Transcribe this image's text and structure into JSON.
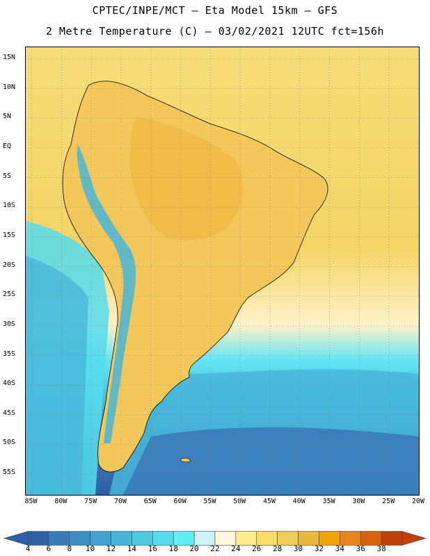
{
  "header": {
    "line1": "CPTEC/INPE/MCT –  Eta Model 15km – GFS",
    "line2": "2 Metre Temperature (C) – 03/02/2021 12UTC fct=156h"
  },
  "map": {
    "lat_labels": [
      "15N",
      "10N",
      "5N",
      "EQ",
      "5S",
      "10S",
      "15S",
      "20S",
      "25S",
      "30S",
      "35S",
      "40S",
      "45S",
      "50S",
      "55S"
    ],
    "lon_labels": [
      "85W",
      "80W",
      "75W",
      "70W",
      "65W",
      "60W",
      "55W",
      "50W",
      "45W",
      "40W",
      "35W",
      "30W",
      "25W",
      "20W"
    ],
    "lon_range": [
      -86,
      -20
    ],
    "lat_range": [
      -58.5,
      17
    ]
  },
  "legend": {
    "labels": [
      "4",
      "6",
      "8",
      "10",
      "12",
      "14",
      "16",
      "18",
      "20",
      "22",
      "24",
      "26",
      "28",
      "30",
      "32",
      "34",
      "36",
      "38"
    ],
    "colors": [
      "#2f5fa5",
      "#3a7ab8",
      "#3f8fc4",
      "#43a2cf",
      "#48b6d9",
      "#4fc8e2",
      "#55dced",
      "#62f0f7",
      "#cdf4fb",
      "#fff7dc",
      "#fdf08a",
      "#f9dd6a",
      "#f2cd57",
      "#e9b73d",
      "#f1a30a",
      "#e8841c",
      "#d9630f",
      "#c0420a"
    ]
  }
}
